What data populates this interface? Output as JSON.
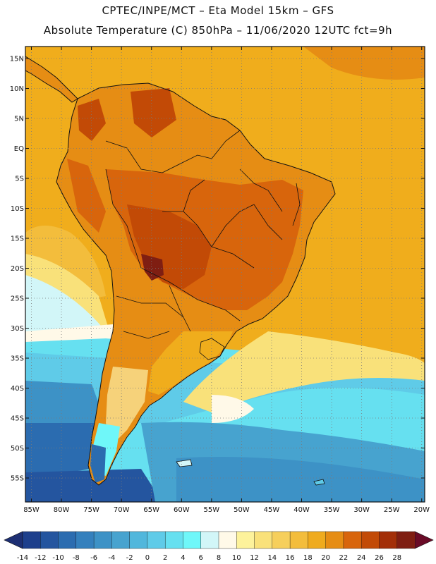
{
  "header": {
    "title_line1": "CPTEC/INPE/MCT –  Eta Model 15km – GFS",
    "title_line2": "Absolute Temperature (C) 850hPa – 11/06/2020 12UTC fct=9h"
  },
  "map": {
    "projection": "lat-lon",
    "lat_range_deg": [
      -59,
      17
    ],
    "lon_range_deg": [
      -86,
      -19.5
    ],
    "lat_labels": [
      "15N",
      "10N",
      "5N",
      "EQ",
      "5S",
      "10S",
      "15S",
      "20S",
      "25S",
      "30S",
      "35S",
      "40S",
      "45S",
      "50S",
      "55S"
    ],
    "lon_labels": [
      "85W",
      "80W",
      "75W",
      "70W",
      "65W",
      "60W",
      "55W",
      "50W",
      "45W",
      "40W",
      "35W",
      "30W",
      "25W",
      "20W"
    ],
    "gridlines": "dotted",
    "variable": "Absolute Temperature (C) 850hPa"
  },
  "colorbar": {
    "tick_labels": [
      "-14",
      "-12",
      "-10",
      "-8",
      "-6",
      "-4",
      "-2",
      "0",
      "2",
      "4",
      "6",
      "8",
      "10",
      "12",
      "14",
      "16",
      "18",
      "20",
      "22",
      "24",
      "26",
      "28"
    ],
    "colors": [
      "#1d3f8c",
      "#24559f",
      "#2b6cb0",
      "#3480bd",
      "#3d92c6",
      "#47a3cf",
      "#51b7dc",
      "#5fcbe8",
      "#66e0f0",
      "#6ff7f9",
      "#d2f6f8",
      "#fff9e8",
      "#fdf29b",
      "#f9e17a",
      "#f6cf5c",
      "#f3bd3c",
      "#efab1e",
      "#e68d14",
      "#d8650c",
      "#c24a06",
      "#a32f08",
      "#7f1e12"
    ],
    "under_color": "#1d2f73",
    "over_color": "#6a0b27"
  }
}
